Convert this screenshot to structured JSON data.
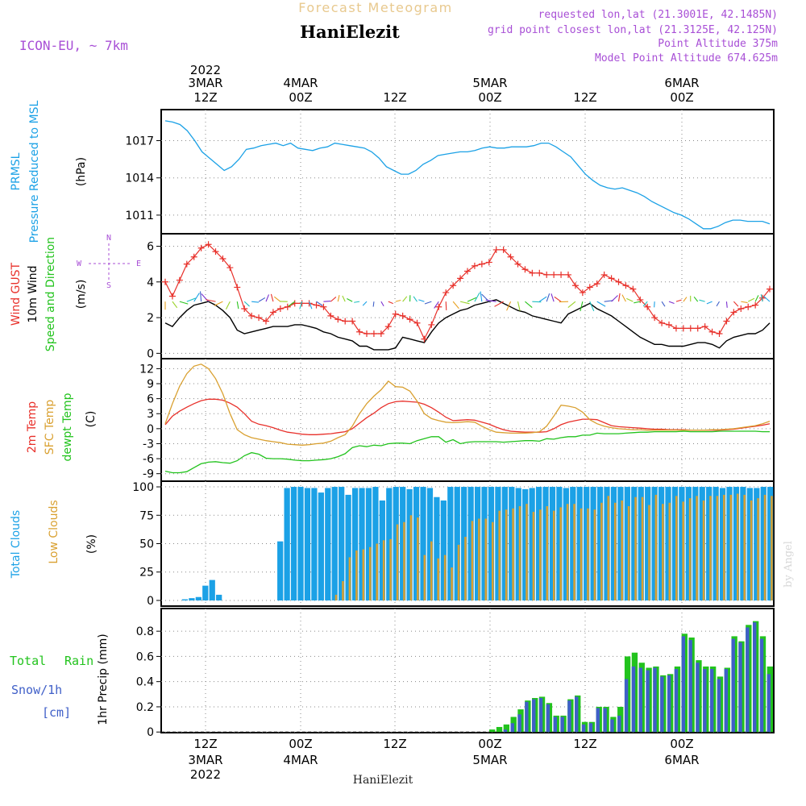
{
  "header": {
    "title": "Forecast Meteogram",
    "location": "HaniElezit",
    "model": "ICON-EU, ~ 7km",
    "requested": "requested lon,lat (21.3001E, 42.1485N)",
    "gridpoint": "grid point closest lon,lat (21.3125E, 42.125N)",
    "altitude": "Point Altitude 375m",
    "model_altitude": "Model Point Altitude 674.625m",
    "footer": "HaniElezit",
    "credit": "by Angel"
  },
  "axis_top": [
    {
      "l1": "2022",
      "l2": "3MAR",
      "l3": "12Z"
    },
    {
      "l1": "",
      "l2": "4MAR",
      "l3": "00Z"
    },
    {
      "l1": "",
      "l2": "",
      "l3": "12Z"
    },
    {
      "l1": "",
      "l2": "5MAR",
      "l3": "00Z"
    },
    {
      "l1": "",
      "l2": "",
      "l3": "12Z"
    },
    {
      "l1": "",
      "l2": "6MAR",
      "l3": "00Z"
    }
  ],
  "axis_bottom": [
    {
      "l1": "12Z",
      "l2": "3MAR",
      "l3": "2022"
    },
    {
      "l1": "00Z",
      "l2": "4MAR",
      "l3": ""
    },
    {
      "l1": "12Z",
      "l2": "",
      "l3": ""
    },
    {
      "l1": "00Z",
      "l2": "5MAR",
      "l3": ""
    },
    {
      "l1": "12Z",
      "l2": "",
      "l3": ""
    },
    {
      "l1": "00Z",
      "l2": "6MAR",
      "l3": ""
    }
  ],
  "panels": {
    "pressure": {
      "label1": "PRMSL",
      "label2": "Pressure Reduced to MSL",
      "unit": "(hPa)"
    },
    "wind": {
      "label_gust": "Wind GUST",
      "label_wind": "10m Wind",
      "label_dir": "Speed and Direction",
      "unit": "(m/s)",
      "compass": {
        "n": "N",
        "s": "S",
        "w": "W",
        "e": "E"
      }
    },
    "temp": {
      "label1": "2m Temp",
      "label2": "SFC Temp",
      "label3": "dewpt Temp",
      "unit": "(C)"
    },
    "cloud": {
      "label1": "Total Clouds",
      "label2": "Low Clouds",
      "unit": "(%)"
    },
    "precip": {
      "label_total": "Total",
      "label_rain": "Rain",
      "label_snow": "Snow/1h",
      "label_cm": "[cm]",
      "unit": "1hr Precip (mm)"
    }
  },
  "chart_data": [
    {
      "type": "line",
      "colors": {
        "prmsl": "#1ba1e6"
      },
      "ylim": [
        1009.5,
        1019.5
      ],
      "yticks": [
        "1011",
        "1014",
        "1017"
      ],
      "series": [
        {
          "values": [
            1018.6,
            1018.5,
            1018.3,
            1017.8,
            1017.0,
            1016.1,
            1015.6,
            1015.1,
            1014.6,
            1014.9,
            1015.5,
            1016.3,
            1016.4,
            1016.6,
            1016.7,
            1016.8,
            1016.6,
            1016.8,
            1016.4,
            1016.3,
            1016.2,
            1016.4,
            1016.5,
            1016.8,
            1016.7,
            1016.6,
            1016.5,
            1016.4,
            1016.1,
            1015.6,
            1014.9,
            1014.6,
            1014.3,
            1014.3,
            1014.6,
            1015.1,
            1015.4,
            1015.8,
            1015.9,
            1016.0,
            1016.1,
            1016.1,
            1016.2,
            1016.4,
            1016.5,
            1016.4,
            1016.4,
            1016.5,
            1016.5,
            1016.5,
            1016.6,
            1016.8,
            1016.8,
            1016.5,
            1016.1,
            1015.7,
            1015.0,
            1014.3,
            1013.8,
            1013.4,
            1013.2,
            1013.1,
            1013.2,
            1013.0,
            1012.8,
            1012.5,
            1012.1,
            1011.8,
            1011.5,
            1011.2,
            1011.0,
            1010.7,
            1010.3,
            1009.9,
            1009.9,
            1010.1,
            1010.4,
            1010.6,
            1010.6,
            1010.5,
            1010.5,
            1010.5,
            1010.3
          ]
        }
      ]
    },
    {
      "type": "line",
      "colors": {
        "gust": "#e8302a",
        "wind": "#000000"
      },
      "ylim": [
        -0.3,
        6.7
      ],
      "yticks": [
        "0",
        "2",
        "4",
        "6"
      ],
      "series": [
        {
          "values": [
            4.0,
            3.2,
            4.1,
            5.0,
            5.4,
            5.9,
            6.1,
            5.7,
            5.3,
            4.8,
            3.7,
            2.5,
            2.1,
            2.0,
            1.8,
            2.3,
            2.5,
            2.6,
            2.8,
            2.8,
            2.8,
            2.7,
            2.6,
            2.1,
            1.9,
            1.8,
            1.8,
            1.2,
            1.1,
            1.1,
            1.1,
            1.5,
            2.2,
            2.1,
            1.9,
            1.7,
            0.8,
            1.6,
            2.6,
            3.4,
            3.8,
            4.2,
            4.6,
            4.9,
            5.0,
            5.1,
            5.8,
            5.8,
            5.4,
            5.0,
            4.7,
            4.5,
            4.5,
            4.4,
            4.4,
            4.4,
            4.4,
            3.8,
            3.4,
            3.7,
            3.9,
            4.4,
            4.2,
            4.0,
            3.8,
            3.6,
            3.0,
            2.6,
            2.0,
            1.7,
            1.6,
            1.4,
            1.4,
            1.4,
            1.4,
            1.5,
            1.2,
            1.1,
            1.8,
            2.3,
            2.5,
            2.6,
            2.7,
            3.1,
            3.6
          ]
        },
        {
          "values": [
            1.7,
            1.5,
            2.0,
            2.4,
            2.7,
            2.8,
            2.9,
            2.7,
            2.4,
            2.0,
            1.3,
            1.1,
            1.2,
            1.3,
            1.4,
            1.5,
            1.5,
            1.5,
            1.6,
            1.6,
            1.5,
            1.4,
            1.2,
            1.1,
            0.9,
            0.8,
            0.7,
            0.4,
            0.4,
            0.2,
            0.2,
            0.2,
            0.3,
            0.9,
            0.8,
            0.7,
            0.6,
            1.2,
            1.7,
            2.0,
            2.2,
            2.4,
            2.5,
            2.7,
            2.8,
            2.9,
            3.0,
            2.8,
            2.6,
            2.4,
            2.3,
            2.1,
            2.0,
            1.9,
            1.8,
            1.7,
            2.2,
            2.4,
            2.6,
            2.8,
            2.5,
            2.3,
            2.1,
            1.8,
            1.5,
            1.2,
            0.9,
            0.7,
            0.5,
            0.5,
            0.4,
            0.4,
            0.4,
            0.5,
            0.6,
            0.6,
            0.5,
            0.3,
            0.7,
            0.9,
            1.0,
            1.1,
            1.1,
            1.3,
            1.7
          ]
        }
      ]
    },
    {
      "type": "line",
      "colors": {
        "t2m": "#e8302a",
        "sfc": "#d9a030",
        "dewpt": "#22c31d"
      },
      "ylim": [
        -10.5,
        14
      ],
      "yticks": [
        "-9",
        "-6",
        "-3",
        "0",
        "3",
        "6",
        "9",
        "12"
      ],
      "series": [
        {
          "values": [
            0.8,
            2.5,
            3.5,
            4.3,
            5.0,
            5.6,
            5.9,
            5.9,
            5.7,
            5.1,
            4.3,
            3.0,
            1.5,
            0.9,
            0.6,
            0.2,
            -0.3,
            -0.7,
            -0.9,
            -1.1,
            -1.2,
            -1.2,
            -1.1,
            -1.0,
            -0.8,
            -0.6,
            0.0,
            1.1,
            2.2,
            3.1,
            4.2,
            5.0,
            5.4,
            5.5,
            5.4,
            5.3,
            4.9,
            4.2,
            3.3,
            2.3,
            1.6,
            1.7,
            1.8,
            1.7,
            1.3,
            0.9,
            0.3,
            -0.2,
            -0.5,
            -0.6,
            -0.7,
            -0.7,
            -0.7,
            -0.6,
            0.0,
            0.8,
            1.3,
            1.6,
            1.9,
            1.9,
            1.8,
            1.2,
            0.6,
            0.4,
            0.3,
            0.2,
            0.1,
            0.0,
            -0.1,
            -0.1,
            -0.2,
            -0.2,
            -0.2,
            -0.3,
            -0.3,
            -0.3,
            -0.3,
            -0.3,
            -0.2,
            -0.1,
            0.1,
            0.3,
            0.5,
            0.7,
            1.0
          ]
        },
        {
          "values": [
            1.0,
            5.0,
            8.5,
            11.0,
            12.5,
            12.9,
            12.0,
            10.0,
            7.0,
            3.0,
            -0.2,
            -1.2,
            -1.8,
            -2.1,
            -2.4,
            -2.6,
            -2.8,
            -3.1,
            -3.2,
            -3.3,
            -3.2,
            -3.0,
            -2.9,
            -2.5,
            -1.8,
            -1.2,
            0.5,
            3.0,
            5.0,
            6.5,
            7.8,
            9.5,
            8.4,
            8.3,
            7.5,
            5.5,
            3.0,
            2.0,
            1.6,
            1.3,
            1.2,
            1.3,
            1.4,
            1.3,
            0.5,
            -0.2,
            -0.7,
            -0.8,
            -0.9,
            -0.9,
            -0.9,
            -0.8,
            -0.6,
            0.5,
            2.5,
            4.7,
            4.5,
            4.2,
            3.3,
            1.8,
            1.0,
            0.5,
            0.2,
            0.0,
            -0.1,
            -0.2,
            -0.2,
            -0.3,
            -0.3,
            -0.3,
            -0.3,
            -0.3,
            -0.3,
            -0.3,
            -0.3,
            -0.3,
            -0.2,
            -0.2,
            -0.1,
            0.0,
            0.2,
            0.4,
            0.6,
            1.0,
            1.5
          ]
        },
        {
          "values": [
            -8.5,
            -8.8,
            -8.8,
            -8.6,
            -7.8,
            -7.0,
            -6.7,
            -6.6,
            -6.8,
            -6.9,
            -6.4,
            -5.4,
            -4.8,
            -5.1,
            -5.9,
            -6.0,
            -6.0,
            -6.1,
            -6.3,
            -6.4,
            -6.4,
            -6.3,
            -6.2,
            -6.0,
            -5.6,
            -5.0,
            -3.8,
            -3.4,
            -3.6,
            -3.3,
            -3.4,
            -3.0,
            -2.9,
            -2.9,
            -3.0,
            -2.4,
            -2.0,
            -1.6,
            -1.6,
            -2.7,
            -2.2,
            -3.0,
            -2.7,
            -2.6,
            -2.6,
            -2.6,
            -2.6,
            -2.7,
            -2.6,
            -2.5,
            -2.4,
            -2.4,
            -2.5,
            -2.0,
            -2.1,
            -1.8,
            -1.6,
            -1.6,
            -1.3,
            -1.3,
            -0.9,
            -1.0,
            -1.0,
            -1.0,
            -0.9,
            -0.8,
            -0.7,
            -0.7,
            -0.6,
            -0.6,
            -0.6,
            -0.6,
            -0.5,
            -0.6,
            -0.6,
            -0.6,
            -0.6,
            -0.5,
            -0.5,
            -0.5,
            -0.5,
            -0.5,
            -0.5,
            -0.6,
            -0.6
          ]
        }
      ]
    },
    {
      "type": "bar",
      "colors": {
        "total": "#1ba1e6",
        "low": "#d9a030"
      },
      "ylim": [
        -5,
        105
      ],
      "yticks": [
        "0",
        "25",
        "50",
        "75",
        "100"
      ],
      "series": [
        {
          "values": [
            0,
            0,
            0,
            1,
            2,
            3,
            13,
            18,
            5,
            0,
            0,
            0,
            0,
            0,
            0,
            0,
            0,
            52,
            99,
            100,
            100,
            99,
            99,
            95,
            99,
            100,
            100,
            93,
            99,
            99,
            99,
            100,
            88,
            99,
            100,
            100,
            98,
            100,
            100,
            99,
            91,
            88,
            100,
            100,
            100,
            100,
            100,
            100,
            100,
            100,
            100,
            100,
            99,
            98,
            99,
            100,
            100,
            100,
            100,
            99,
            100,
            100,
            100,
            100,
            100,
            100,
            100,
            100,
            100,
            100,
            100,
            100,
            100,
            100,
            100,
            100,
            100,
            100,
            100,
            100,
            100,
            100,
            99,
            100,
            100,
            100,
            99,
            99,
            100,
            100
          ]
        },
        {
          "values": [
            0,
            0,
            0,
            0,
            0,
            0,
            0,
            0,
            0,
            0,
            0,
            0,
            0,
            0,
            0,
            0,
            0,
            0,
            0,
            0,
            0,
            0,
            0,
            0,
            0,
            5,
            17,
            38,
            44,
            45,
            47,
            50,
            53,
            54,
            67,
            69,
            75,
            73,
            40,
            52,
            37,
            40,
            29,
            49,
            56,
            70,
            72,
            72,
            69,
            79,
            80,
            81,
            83,
            85,
            78,
            80,
            83,
            79,
            82,
            85,
            85,
            81,
            81,
            80,
            86,
            92,
            86,
            88,
            83,
            91,
            91,
            84,
            93,
            85,
            86,
            92,
            87,
            90,
            92,
            88,
            92,
            92,
            93,
            93,
            94,
            93,
            88,
            90,
            93,
            92
          ]
        }
      ]
    },
    {
      "type": "bar",
      "colors": {
        "total": "#22c31d",
        "snow": "#3f5fc8"
      },
      "ylim": [
        -0.005,
        0.98
      ],
      "yticks": [
        "0",
        "0.2",
        "0.4",
        "0.6",
        "0.8"
      ],
      "series": [
        {
          "values": [
            0,
            0,
            0,
            0,
            0,
            0,
            0,
            0,
            0,
            0,
            0,
            0,
            0,
            0,
            0,
            0,
            0,
            0,
            0,
            0,
            0,
            0,
            0,
            0,
            0,
            0,
            0,
            0,
            0,
            0,
            0,
            0,
            0,
            0,
            0,
            0,
            0,
            0,
            0,
            0,
            0,
            0,
            0,
            0,
            0,
            0,
            0.02,
            0.04,
            0.06,
            0.12,
            0.18,
            0.25,
            0.27,
            0.28,
            0.23,
            0.13,
            0.13,
            0.26,
            0.29,
            0.08,
            0.08,
            0.2,
            0.2,
            0.12,
            0.2,
            0.6,
            0.63,
            0.55,
            0.51,
            0.52,
            0.45,
            0.46,
            0.52,
            0.78,
            0.75,
            0.57,
            0.52,
            0.52,
            0.44,
            0.51,
            0.76,
            0.72,
            0.85,
            0.88,
            0.76,
            0.52
          ]
        },
        {
          "values": [
            0,
            0,
            0,
            0,
            0,
            0,
            0,
            0,
            0,
            0,
            0,
            0,
            0,
            0,
            0,
            0,
            0,
            0,
            0,
            0,
            0,
            0,
            0,
            0,
            0,
            0,
            0,
            0,
            0,
            0,
            0,
            0,
            0,
            0,
            0,
            0,
            0,
            0,
            0,
            0,
            0,
            0,
            0,
            0,
            0,
            0,
            0,
            0,
            0.02,
            0.07,
            0.14,
            0.24,
            0.26,
            0.27,
            0.22,
            0.12,
            0.12,
            0.25,
            0.28,
            0.06,
            0.07,
            0.19,
            0.19,
            0.1,
            0.13,
            0.42,
            0.52,
            0.51,
            0.49,
            0.51,
            0.44,
            0.45,
            0.5,
            0.76,
            0.73,
            0.55,
            0.5,
            0.5,
            0.42,
            0.5,
            0.74,
            0.71,
            0.83,
            0.87,
            0.74,
            0.46
          ]
        }
      ]
    }
  ]
}
